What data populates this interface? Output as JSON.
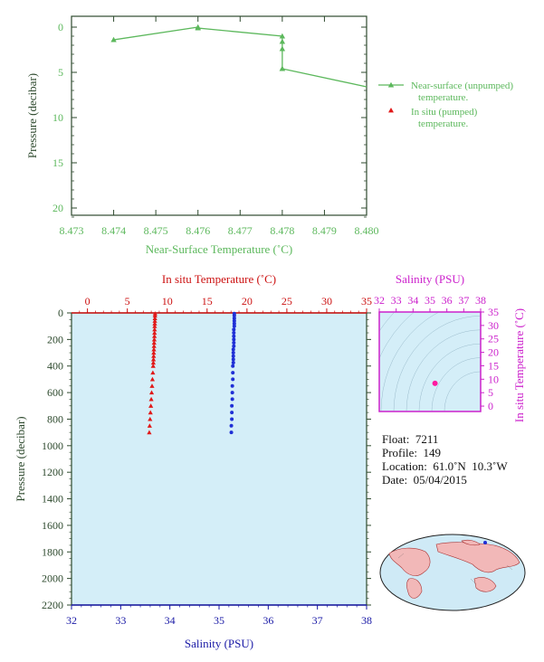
{
  "chart_data": [
    {
      "type": "line",
      "xlabel": "Near-Surface Temperature (˚C)",
      "ylabel": "Pressure (decibar)",
      "xlim": [
        8.473,
        8.48
      ],
      "ylim": [
        0,
        22
      ],
      "y_inverted": true,
      "x_ticks": [
        "8.473",
        "8.474",
        "8.475",
        "8.476",
        "8.477",
        "8.478",
        "8.479",
        "8.480"
      ],
      "y_ticks": [
        "0",
        "5",
        "10",
        "15",
        "20"
      ],
      "series": [
        {
          "name": "Near-surface (unpumped) temperature.",
          "color": "#5cb85c",
          "x": [
            8.474,
            8.476,
            8.476,
            8.478,
            8.478,
            8.478,
            8.478,
            8.478,
            8.48
          ],
          "y": [
            1.4,
            0.0,
            0.1,
            1.0,
            1.6,
            2.4,
            4.6,
            4.6,
            6.6
          ]
        },
        {
          "name": "In situ (pumped) temperature.",
          "color": "#e11919",
          "x": [],
          "y": []
        }
      ],
      "legend_position": "right"
    },
    {
      "type": "scatter",
      "ylabel": "Pressure (decibar)",
      "top_axis_label": "In situ Temperature (˚C)",
      "bottom_axis_label": "Salinity (PSU)",
      "temp_lim": [
        -2,
        35
      ],
      "sal_lim": [
        32,
        38
      ],
      "ylim": [
        0,
        2200
      ],
      "y_inverted": true,
      "temp_ticks": [
        "0",
        "5",
        "10",
        "15",
        "20",
        "25",
        "30",
        "35"
      ],
      "sal_ticks": [
        "32",
        "33",
        "34",
        "35",
        "36",
        "37",
        "38"
      ],
      "y_ticks": [
        "0",
        "200",
        "400",
        "600",
        "800",
        "1000",
        "1200",
        "1400",
        "1600",
        "1800",
        "2000",
        "2200"
      ],
      "series": [
        {
          "name": "Temperature",
          "color": "#e11919",
          "axis": "top",
          "pressure": [
            5,
            20,
            40,
            60,
            80,
            100,
            125,
            150,
            175,
            200,
            225,
            250,
            275,
            300,
            325,
            350,
            375,
            400,
            450,
            500,
            550,
            600,
            650,
            700,
            750,
            800,
            850,
            900
          ],
          "values": [
            8.48,
            8.47,
            8.46,
            8.45,
            8.44,
            8.43,
            8.42,
            8.41,
            8.4,
            8.38,
            8.36,
            8.35,
            8.33,
            8.31,
            8.3,
            8.28,
            8.26,
            8.24,
            8.2,
            8.15,
            8.1,
            8.05,
            8.0,
            7.95,
            7.9,
            7.85,
            7.8,
            7.75
          ]
        },
        {
          "name": "Salinity",
          "color": "#1f2fd6",
          "axis": "bottom",
          "pressure": [
            5,
            20,
            40,
            60,
            80,
            100,
            125,
            150,
            175,
            200,
            225,
            250,
            275,
            300,
            325,
            350,
            375,
            400,
            450,
            500,
            550,
            600,
            650,
            700,
            750,
            800,
            850,
            900
          ],
          "values": [
            35.31,
            35.31,
            35.31,
            35.31,
            35.31,
            35.31,
            35.3,
            35.3,
            35.3,
            35.3,
            35.3,
            35.3,
            35.29,
            35.29,
            35.29,
            35.29,
            35.29,
            35.28,
            35.28,
            35.28,
            35.27,
            35.27,
            35.27,
            35.26,
            35.26,
            35.26,
            35.25,
            35.25
          ]
        }
      ]
    },
    {
      "type": "scatter",
      "top_axis_label": "Salinity (PSU)",
      "right_axis_label": "In situ Temperature (˚C)",
      "sal_lim": [
        32,
        38
      ],
      "temp_lim": [
        -2,
        35
      ],
      "sal_ticks": [
        "32",
        "33",
        "34",
        "35",
        "36",
        "37",
        "38"
      ],
      "temp_ticks": [
        "0",
        "5",
        "10",
        "15",
        "20",
        "25",
        "30",
        "35"
      ],
      "points": [
        {
          "s": 35.3,
          "t": 8.45
        }
      ],
      "point_color": "#ff1aa0"
    }
  ],
  "info": {
    "float_label": "Float:",
    "float": "7211",
    "profile_label": "Profile:",
    "profile": "149",
    "location_label": "Location:",
    "location": "61.0˚N  10.3˚W",
    "date_label": "Date:",
    "date": "05/04/2015"
  },
  "colors": {
    "green": "#5cb85c",
    "axis_green": "#2e4a2e",
    "red": "#cc1111",
    "blue": "#1a1aa6",
    "magenta": "#cc22cc",
    "plot_bg": "#d4eef8"
  }
}
